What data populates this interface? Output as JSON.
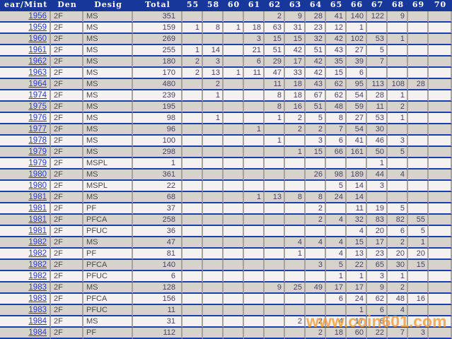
{
  "table": {
    "headers": [
      "ear/Mint",
      "Den",
      "Desig",
      "Total",
      "55",
      "58",
      "60",
      "61",
      "62",
      "63",
      "64",
      "65",
      "66",
      "67",
      "68",
      "69",
      "70"
    ],
    "grade_columns": [
      "55",
      "58",
      "60",
      "61",
      "62",
      "63",
      "64",
      "65",
      "66",
      "67",
      "68",
      "69",
      "70"
    ],
    "rows": [
      {
        "year": "1956",
        "den": "2F",
        "desig": "MS",
        "total": "351",
        "grades": [
          "",
          "",
          "",
          "",
          "2",
          "9",
          "28",
          "41",
          "140",
          "122",
          "9",
          "",
          ""
        ]
      },
      {
        "year": "1959",
        "den": "2F",
        "desig": "MS",
        "total": "159",
        "grades": [
          "1",
          "8",
          "1",
          "18",
          "63",
          "31",
          "23",
          "12",
          "1",
          "",
          "",
          "",
          ""
        ]
      },
      {
        "year": "1960",
        "den": "2F",
        "desig": "MS",
        "total": "269",
        "grades": [
          "",
          "",
          "",
          "3",
          "15",
          "15",
          "32",
          "42",
          "102",
          "53",
          "1",
          "",
          ""
        ]
      },
      {
        "year": "1961",
        "den": "2F",
        "desig": "MS",
        "total": "255",
        "grades": [
          "1",
          "14",
          "",
          "21",
          "51",
          "42",
          "51",
          "43",
          "27",
          "5",
          "",
          "",
          ""
        ]
      },
      {
        "year": "1962",
        "den": "2F",
        "desig": "MS",
        "total": "180",
        "grades": [
          "2",
          "3",
          "",
          "6",
          "29",
          "17",
          "42",
          "35",
          "39",
          "7",
          "",
          "",
          ""
        ]
      },
      {
        "year": "1963",
        "den": "2F",
        "desig": "MS",
        "total": "170",
        "grades": [
          "2",
          "13",
          "1",
          "11",
          "47",
          "33",
          "42",
          "15",
          "6",
          "",
          "",
          "",
          ""
        ]
      },
      {
        "year": "1964",
        "den": "2F",
        "desig": "MS",
        "total": "480",
        "grades": [
          "",
          "2",
          "",
          "",
          "11",
          "18",
          "43",
          "62",
          "95",
          "113",
          "108",
          "28",
          ""
        ]
      },
      {
        "year": "1974",
        "den": "2F",
        "desig": "MS",
        "total": "239",
        "grades": [
          "",
          "1",
          "",
          "",
          "8",
          "18",
          "67",
          "62",
          "54",
          "28",
          "1",
          "",
          ""
        ]
      },
      {
        "year": "1975",
        "den": "2F",
        "desig": "MS",
        "total": "195",
        "grades": [
          "",
          "",
          "",
          "",
          "8",
          "16",
          "51",
          "48",
          "59",
          "11",
          "2",
          "",
          ""
        ]
      },
      {
        "year": "1976",
        "den": "2F",
        "desig": "MS",
        "total": "98",
        "grades": [
          "",
          "1",
          "",
          "",
          "1",
          "2",
          "5",
          "8",
          "27",
          "53",
          "1",
          "",
          ""
        ]
      },
      {
        "year": "1977",
        "den": "2F",
        "desig": "MS",
        "total": "96",
        "grades": [
          "",
          "",
          "",
          "1",
          "",
          "2",
          "2",
          "7",
          "54",
          "30",
          "",
          "",
          ""
        ]
      },
      {
        "year": "1978",
        "den": "2F",
        "desig": "MS",
        "total": "100",
        "grades": [
          "",
          "",
          "",
          "",
          "1",
          "",
          "3",
          "6",
          "41",
          "46",
          "3",
          "",
          ""
        ]
      },
      {
        "year": "1979",
        "den": "2F",
        "desig": "MS",
        "total": "298",
        "grades": [
          "",
          "",
          "",
          "",
          "",
          "1",
          "15",
          "66",
          "161",
          "50",
          "5",
          "",
          ""
        ]
      },
      {
        "year": "1979",
        "den": "2F",
        "desig": "MSPL",
        "total": "1",
        "grades": [
          "",
          "",
          "",
          "",
          "",
          "",
          "",
          "",
          "",
          "1",
          "",
          "",
          ""
        ]
      },
      {
        "year": "1980",
        "den": "2F",
        "desig": "MS",
        "total": "361",
        "grades": [
          "",
          "",
          "",
          "",
          "",
          "",
          "26",
          "98",
          "189",
          "44",
          "4",
          "",
          ""
        ]
      },
      {
        "year": "1980",
        "den": "2F",
        "desig": "MSPL",
        "total": "22",
        "grades": [
          "",
          "",
          "",
          "",
          "",
          "",
          "",
          "5",
          "14",
          "3",
          "",
          "",
          ""
        ]
      },
      {
        "year": "1981",
        "den": "2F",
        "desig": "MS",
        "total": "68",
        "grades": [
          "",
          "",
          "",
          "1",
          "13",
          "8",
          "8",
          "24",
          "14",
          "",
          "",
          "",
          ""
        ]
      },
      {
        "year": "1981",
        "den": "2F",
        "desig": "PF",
        "total": "37",
        "grades": [
          "",
          "",
          "",
          "",
          "",
          "",
          "2",
          "",
          "11",
          "19",
          "5",
          "",
          ""
        ]
      },
      {
        "year": "1981",
        "den": "2F",
        "desig": "PFCA",
        "total": "258",
        "grades": [
          "",
          "",
          "",
          "",
          "",
          "",
          "2",
          "4",
          "32",
          "83",
          "82",
          "55",
          ""
        ]
      },
      {
        "year": "1981",
        "den": "2F",
        "desig": "PFUC",
        "total": "36",
        "grades": [
          "",
          "",
          "",
          "",
          "",
          "",
          "",
          "",
          "4",
          "20",
          "6",
          "5",
          ""
        ]
      },
      {
        "year": "1982",
        "den": "2F",
        "desig": "MS",
        "total": "47",
        "grades": [
          "",
          "",
          "",
          "",
          "",
          "4",
          "4",
          "4",
          "15",
          "17",
          "2",
          "1",
          ""
        ]
      },
      {
        "year": "1982",
        "den": "2F",
        "desig": "PF",
        "total": "81",
        "grades": [
          "",
          "",
          "",
          "",
          "",
          "1",
          "",
          "4",
          "13",
          "23",
          "20",
          "20",
          ""
        ]
      },
      {
        "year": "1982",
        "den": "2F",
        "desig": "PFCA",
        "total": "140",
        "grades": [
          "",
          "",
          "",
          "",
          "",
          "",
          "3",
          "5",
          "22",
          "65",
          "30",
          "15",
          ""
        ]
      },
      {
        "year": "1982",
        "den": "2F",
        "desig": "PFUC",
        "total": "6",
        "grades": [
          "",
          "",
          "",
          "",
          "",
          "",
          "",
          "1",
          "1",
          "3",
          "1",
          "",
          ""
        ]
      },
      {
        "year": "1983",
        "den": "2F",
        "desig": "MS",
        "total": "128",
        "grades": [
          "",
          "",
          "",
          "",
          "9",
          "25",
          "49",
          "17",
          "17",
          "9",
          "2",
          "",
          ""
        ]
      },
      {
        "year": "1983",
        "den": "2F",
        "desig": "PFCA",
        "total": "156",
        "grades": [
          "",
          "",
          "",
          "",
          "",
          "",
          "",
          "6",
          "24",
          "62",
          "48",
          "16",
          ""
        ]
      },
      {
        "year": "1983",
        "den": "2F",
        "desig": "PFUC",
        "total": "11",
        "grades": [
          "",
          "",
          "",
          "",
          "",
          "",
          "",
          "",
          "1",
          "6",
          "4",
          "",
          ""
        ]
      },
      {
        "year": "1984",
        "den": "2F",
        "desig": "MS",
        "total": "31",
        "grades": [
          "",
          "",
          "",
          "",
          "",
          "2",
          "2",
          "4",
          "17",
          "6",
          "",
          "",
          ""
        ]
      },
      {
        "year": "1984",
        "den": "2F",
        "desig": "PF",
        "total": "112",
        "grades": [
          "",
          "",
          "",
          "",
          "",
          "",
          "2",
          "18",
          "60",
          "22",
          "7",
          "3",
          ""
        ]
      }
    ]
  },
  "watermark": "www.coin601.com",
  "colors": {
    "header_bg": "#17379B",
    "row_separator": "#1C3FA4",
    "cell_border": "#A6A39D",
    "row_gray": "#D6D3CB",
    "row_white": "#F3F2EF",
    "year_link": "#2E3EB8",
    "value_text": "#45435F",
    "watermark_orange": "#F49C3C"
  }
}
